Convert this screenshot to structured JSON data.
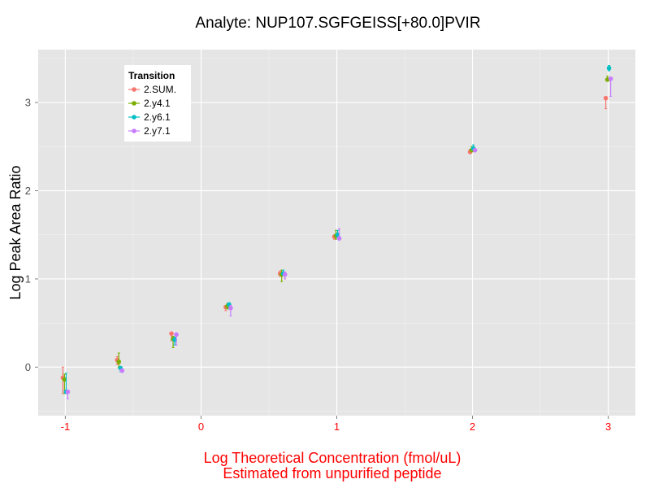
{
  "chart_data": {
    "type": "scatter",
    "title": "Analyte: NUP107.SGFGEISS[+80.0]PVIR",
    "xlabel_line1": "Log Theoretical Concentration (fmol/uL)",
    "xlabel_line2": "Estimated from unpurified peptide",
    "ylabel": "Log Peak Area Ratio",
    "xlim": [
      -1.2,
      3.2
    ],
    "ylim": [
      -0.55,
      3.6
    ],
    "xticks": [
      "-1",
      "0",
      "1",
      "2",
      "3"
    ],
    "yticks": [
      "0",
      "1",
      "2",
      "3"
    ],
    "grid": true,
    "legend_title": "Transition",
    "legend_position": "top-left",
    "x_levels": [
      -1,
      -0.6,
      -0.2,
      0.2,
      0.6,
      1,
      2,
      3
    ],
    "series": [
      {
        "name": "2.SUM.",
        "color": "#F8766D",
        "points": [
          {
            "y": -0.12,
            "lo": -0.3,
            "hi": 0.0
          },
          {
            "y": 0.08,
            "lo": 0.03,
            "hi": 0.12
          },
          {
            "y": 0.38,
            "lo": 0.3,
            "hi": 0.38
          },
          {
            "y": 0.68,
            "lo": 0.64,
            "hi": 0.7
          },
          {
            "y": 1.06,
            "lo": 1.03,
            "hi": 1.09
          },
          {
            "y": 1.48,
            "lo": 1.45,
            "hi": 1.5
          },
          {
            "y": 2.44,
            "lo": 2.42,
            "hi": 2.47
          },
          {
            "y": 3.05,
            "lo": 2.93,
            "hi": 3.06
          }
        ]
      },
      {
        "name": "2.y4.1",
        "color": "#7CAE00",
        "points": [
          {
            "y": -0.14,
            "lo": -0.3,
            "hi": -0.08
          },
          {
            "y": 0.06,
            "lo": 0.0,
            "hi": 0.16
          },
          {
            "y": 0.32,
            "lo": 0.22,
            "hi": 0.35
          },
          {
            "y": 0.69,
            "lo": 0.66,
            "hi": 0.72
          },
          {
            "y": 1.05,
            "lo": 0.97,
            "hi": 1.1
          },
          {
            "y": 1.49,
            "lo": 1.45,
            "hi": 1.55
          },
          {
            "y": 2.46,
            "lo": 2.44,
            "hi": 2.5
          },
          {
            "y": 3.26,
            "lo": 3.24,
            "hi": 3.3
          }
        ]
      },
      {
        "name": "2.y6.1",
        "color": "#00BFC4",
        "points": [
          {
            "y": -0.28,
            "lo": -0.3,
            "hi": -0.07
          },
          {
            "y": -0.01,
            "lo": -0.05,
            "hi": 0.0
          },
          {
            "y": 0.31,
            "lo": 0.25,
            "hi": 0.34
          },
          {
            "y": 0.71,
            "lo": 0.66,
            "hi": 0.73
          },
          {
            "y": 1.06,
            "lo": 1.04,
            "hi": 1.1
          },
          {
            "y": 1.5,
            "lo": 1.47,
            "hi": 1.55
          },
          {
            "y": 2.48,
            "lo": 2.46,
            "hi": 2.52
          },
          {
            "y": 3.39,
            "lo": 3.36,
            "hi": 3.42
          }
        ]
      },
      {
        "name": "2.y7.1",
        "color": "#C77CFF",
        "points": [
          {
            "y": -0.28,
            "lo": -0.36,
            "hi": -0.27
          },
          {
            "y": -0.04,
            "lo": -0.06,
            "hi": -0.02
          },
          {
            "y": 0.37,
            "lo": 0.25,
            "hi": 0.38
          },
          {
            "y": 0.67,
            "lo": 0.58,
            "hi": 0.7
          },
          {
            "y": 1.05,
            "lo": 1.0,
            "hi": 1.08
          },
          {
            "y": 1.46,
            "lo": 1.44,
            "hi": 1.57
          },
          {
            "y": 2.46,
            "lo": 2.44,
            "hi": 2.47
          },
          {
            "y": 3.27,
            "lo": 3.07,
            "hi": 3.28
          }
        ]
      }
    ]
  }
}
